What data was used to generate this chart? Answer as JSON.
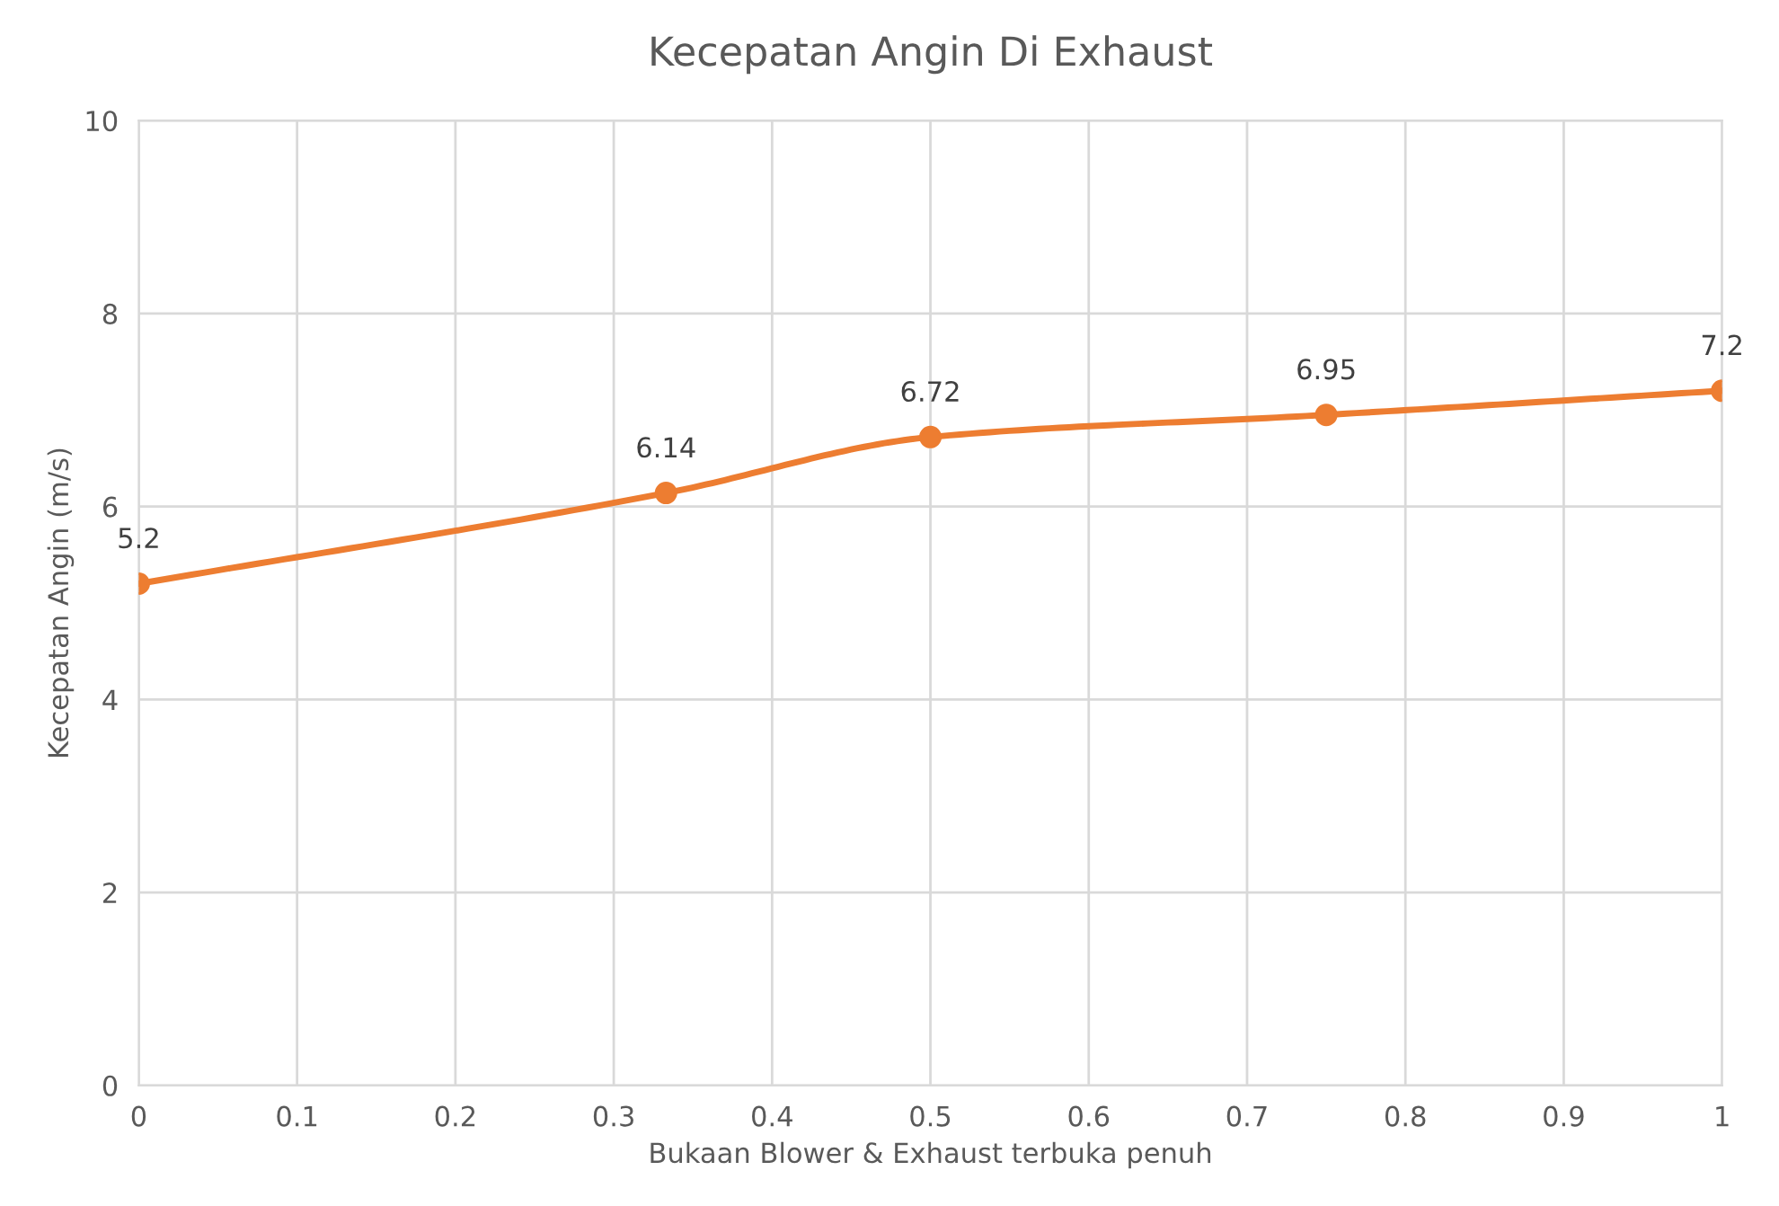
{
  "chart_data": {
    "type": "line",
    "title": "Kecepatan Angin Di Exhaust",
    "xlabel": "Bukaan Blower & Exhaust terbuka penuh",
    "ylabel": "Kecepatan Angin (m/s)",
    "x": [
      0,
      0.333,
      0.5,
      0.75,
      1
    ],
    "series": [
      {
        "color": "#ed7d31",
        "values": [
          5.2,
          6.14,
          6.72,
          6.95,
          7.2
        ]
      }
    ],
    "xlim": [
      0,
      1
    ],
    "xticks": [
      0,
      0.1,
      0.2,
      0.3,
      0.4,
      0.5,
      0.6,
      0.7,
      0.8,
      0.9,
      1
    ],
    "ylim": [
      0,
      10
    ],
    "yticks": [
      0,
      2,
      4,
      6,
      8,
      10
    ],
    "grid": true,
    "marker": "circle",
    "line_style": "solid",
    "data_labels": true
  }
}
